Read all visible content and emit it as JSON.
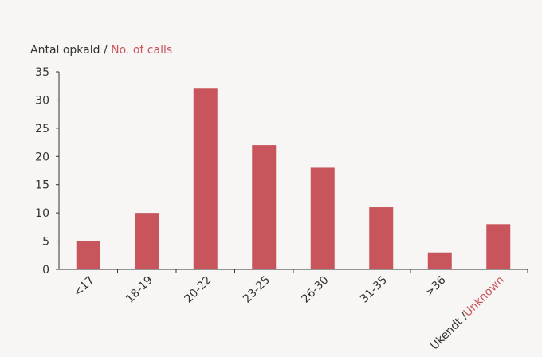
{
  "chart_data": {
    "type": "bar",
    "ylabel_primary": "Antal opkald",
    "ylabel_separator": " / ",
    "ylabel_secondary": "No. of calls",
    "categories": [
      "<17",
      "18-19",
      "20-22",
      "23-25",
      "26-30",
      "31-35",
      ">36",
      "Ukendt /Unknown"
    ],
    "last_category_primary": "Ukendt /",
    "last_category_secondary": "Unknown",
    "values": [
      5,
      10,
      32,
      22,
      18,
      11,
      3,
      8
    ],
    "ylim": [
      0,
      35
    ],
    "yticks": [
      0,
      5,
      10,
      15,
      20,
      25,
      30,
      35
    ],
    "grid": false,
    "bar_color": "#c8545c",
    "secondary_text_color": "#c8545c",
    "text_color": "#333333"
  }
}
